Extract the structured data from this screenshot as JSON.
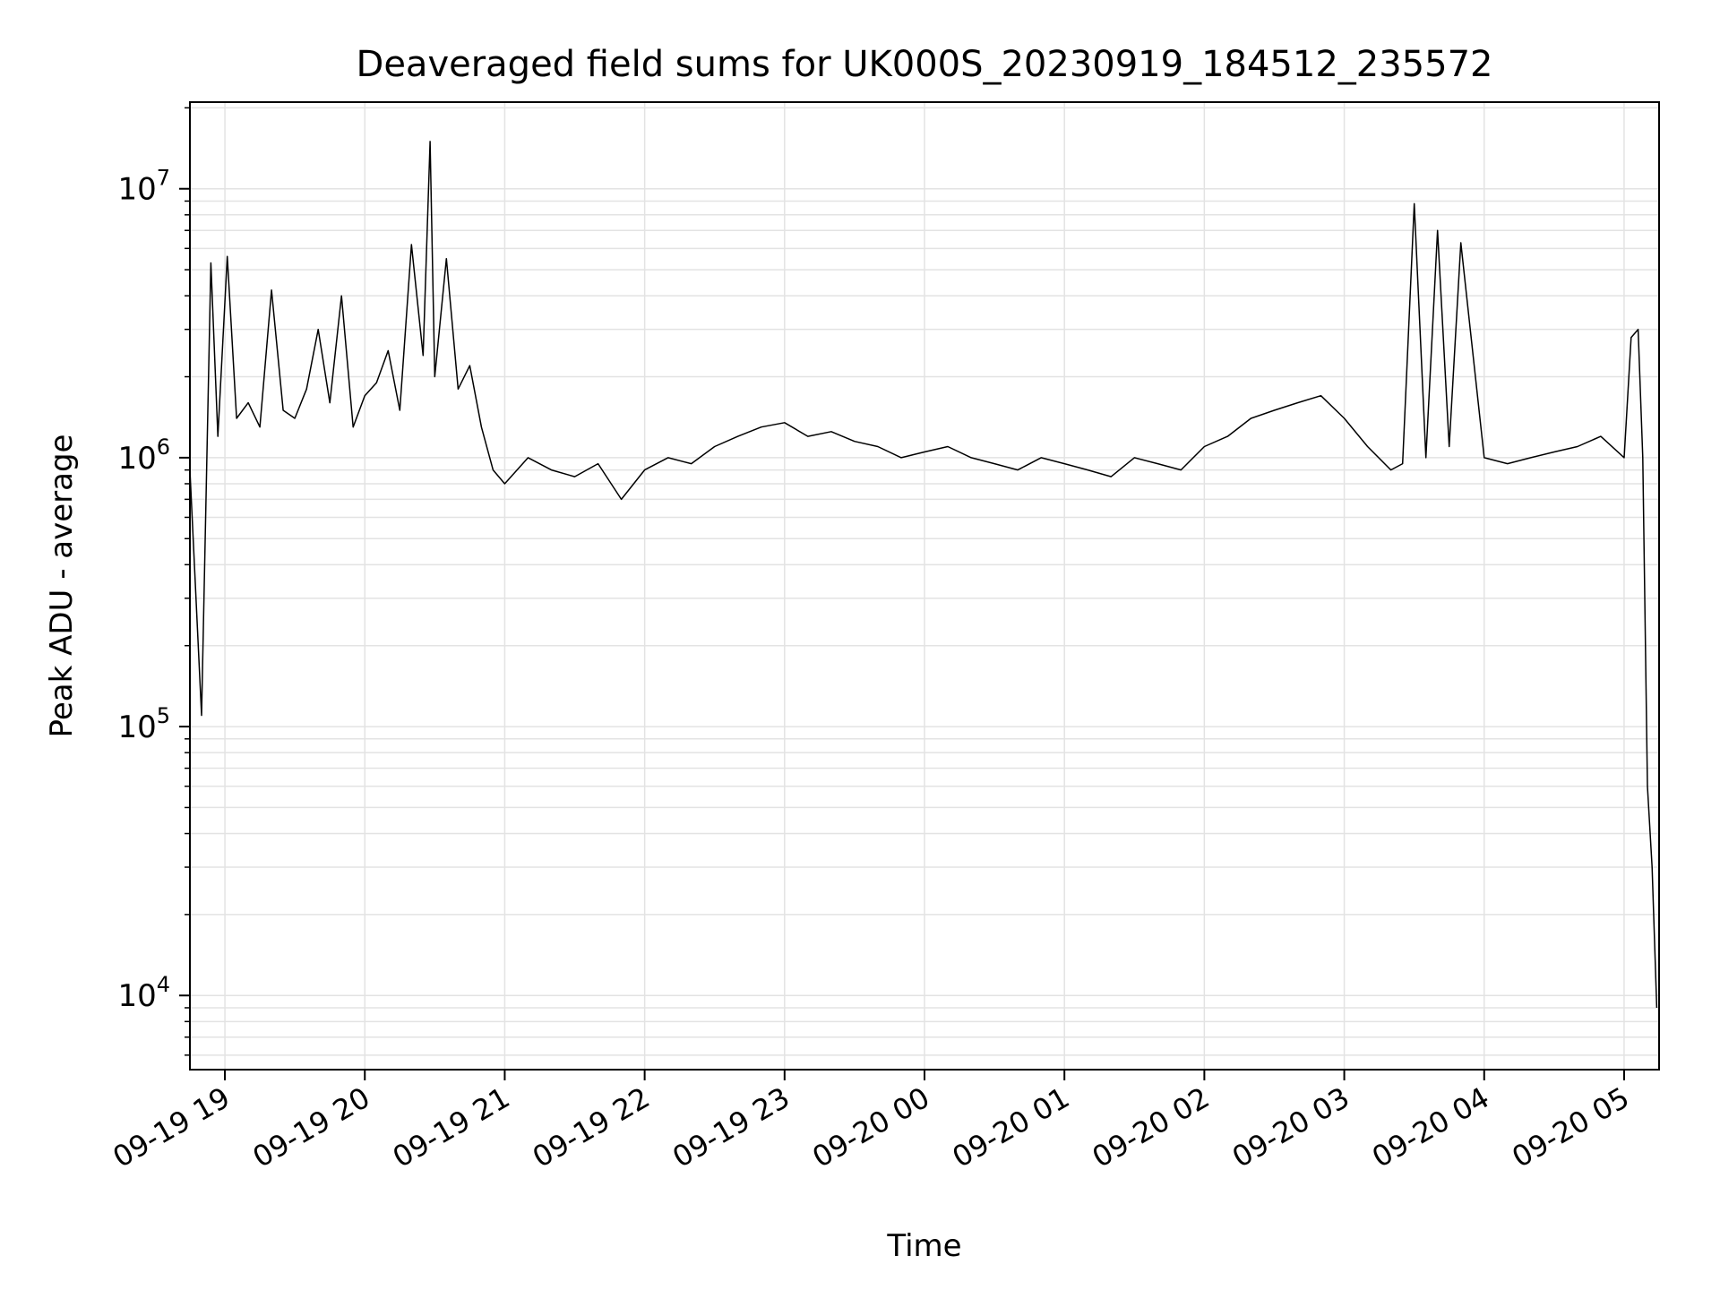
{
  "chart_data": {
    "type": "line",
    "title": "Deaveraged field sums for UK000S_20230919_184512_235572",
    "xlabel": "Time",
    "ylabel": "Peak ADU - average",
    "yscale": "log",
    "ylim": [
      5300,
      21000000
    ],
    "xlim": [
      "2023-09-19 18:45",
      "2023-09-20 05:15"
    ],
    "x_ticks": [
      "09-19 19",
      "09-19 20",
      "09-19 21",
      "09-19 22",
      "09-19 23",
      "09-20 00",
      "09-20 01",
      "09-20 02",
      "09-20 03",
      "09-20 04",
      "09-20 05"
    ],
    "y_ticks": [
      {
        "base": "10",
        "exp": "4",
        "value": 10000
      },
      {
        "base": "10",
        "exp": "5",
        "value": 100000
      },
      {
        "base": "10",
        "exp": "6",
        "value": 1000000
      },
      {
        "base": "10",
        "exp": "7",
        "value": 10000000
      }
    ],
    "grid": true,
    "line_color": "#000000",
    "series": [
      {
        "x": [
          "2023-09-19 18:45",
          "2023-09-19 18:50",
          "2023-09-19 18:54",
          "2023-09-19 18:57",
          "2023-09-19 19:01",
          "2023-09-19 19:05",
          "2023-09-19 19:10",
          "2023-09-19 19:15",
          "2023-09-19 19:20",
          "2023-09-19 19:25",
          "2023-09-19 19:30",
          "2023-09-19 19:35",
          "2023-09-19 19:40",
          "2023-09-19 19:45",
          "2023-09-19 19:50",
          "2023-09-19 19:55",
          "2023-09-19 20:00",
          "2023-09-19 20:05",
          "2023-09-19 20:10",
          "2023-09-19 20:15",
          "2023-09-19 20:20",
          "2023-09-19 20:25",
          "2023-09-19 20:28",
          "2023-09-19 20:30",
          "2023-09-19 20:35",
          "2023-09-19 20:40",
          "2023-09-19 20:45",
          "2023-09-19 20:50",
          "2023-09-19 20:55",
          "2023-09-19 21:00",
          "2023-09-19 21:10",
          "2023-09-19 21:20",
          "2023-09-19 21:30",
          "2023-09-19 21:40",
          "2023-09-19 21:50",
          "2023-09-19 22:00",
          "2023-09-19 22:10",
          "2023-09-19 22:20",
          "2023-09-19 22:30",
          "2023-09-19 22:40",
          "2023-09-19 22:50",
          "2023-09-19 23:00",
          "2023-09-19 23:10",
          "2023-09-19 23:20",
          "2023-09-19 23:30",
          "2023-09-19 23:40",
          "2023-09-19 23:50",
          "2023-09-20 00:00",
          "2023-09-20 00:10",
          "2023-09-20 00:20",
          "2023-09-20 00:30",
          "2023-09-20 00:40",
          "2023-09-20 00:50",
          "2023-09-20 01:00",
          "2023-09-20 01:10",
          "2023-09-20 01:20",
          "2023-09-20 01:30",
          "2023-09-20 01:40",
          "2023-09-20 01:50",
          "2023-09-20 02:00",
          "2023-09-20 02:10",
          "2023-09-20 02:20",
          "2023-09-20 02:30",
          "2023-09-20 02:40",
          "2023-09-20 02:50",
          "2023-09-20 03:00",
          "2023-09-20 03:10",
          "2023-09-20 03:20",
          "2023-09-20 03:25",
          "2023-09-20 03:30",
          "2023-09-20 03:35",
          "2023-09-20 03:40",
          "2023-09-20 03:45",
          "2023-09-20 03:50",
          "2023-09-20 04:00",
          "2023-09-20 04:10",
          "2023-09-20 04:20",
          "2023-09-20 04:30",
          "2023-09-20 04:40",
          "2023-09-20 04:50",
          "2023-09-20 05:00",
          "2023-09-20 05:03",
          "2023-09-20 05:06",
          "2023-09-20 05:08",
          "2023-09-20 05:10",
          "2023-09-20 05:12",
          "2023-09-20 05:14"
        ],
        "values": [
          900000,
          110000,
          5300000,
          1200000,
          5600000,
          1400000,
          1600000,
          1300000,
          4200000,
          1500000,
          1400000,
          1800000,
          3000000,
          1600000,
          4000000,
          1300000,
          1700000,
          1900000,
          2500000,
          1500000,
          6200000,
          2400000,
          15000000,
          2000000,
          5500000,
          1800000,
          2200000,
          1300000,
          900000,
          800000,
          1000000,
          900000,
          850000,
          950000,
          700000,
          900000,
          1000000,
          950000,
          1100000,
          1200000,
          1300000,
          1350000,
          1200000,
          1250000,
          1150000,
          1100000,
          1000000,
          1050000,
          1100000,
          1000000,
          950000,
          900000,
          1000000,
          950000,
          900000,
          850000,
          1000000,
          950000,
          900000,
          1100000,
          1200000,
          1400000,
          1500000,
          1600000,
          1700000,
          1400000,
          1100000,
          900000,
          950000,
          8800000,
          1000000,
          7000000,
          1100000,
          6300000,
          1000000,
          950000,
          1000000,
          1050000,
          1100000,
          1200000,
          1000000,
          2800000,
          3000000,
          1000000,
          60000,
          30000,
          9000
        ]
      }
    ]
  }
}
